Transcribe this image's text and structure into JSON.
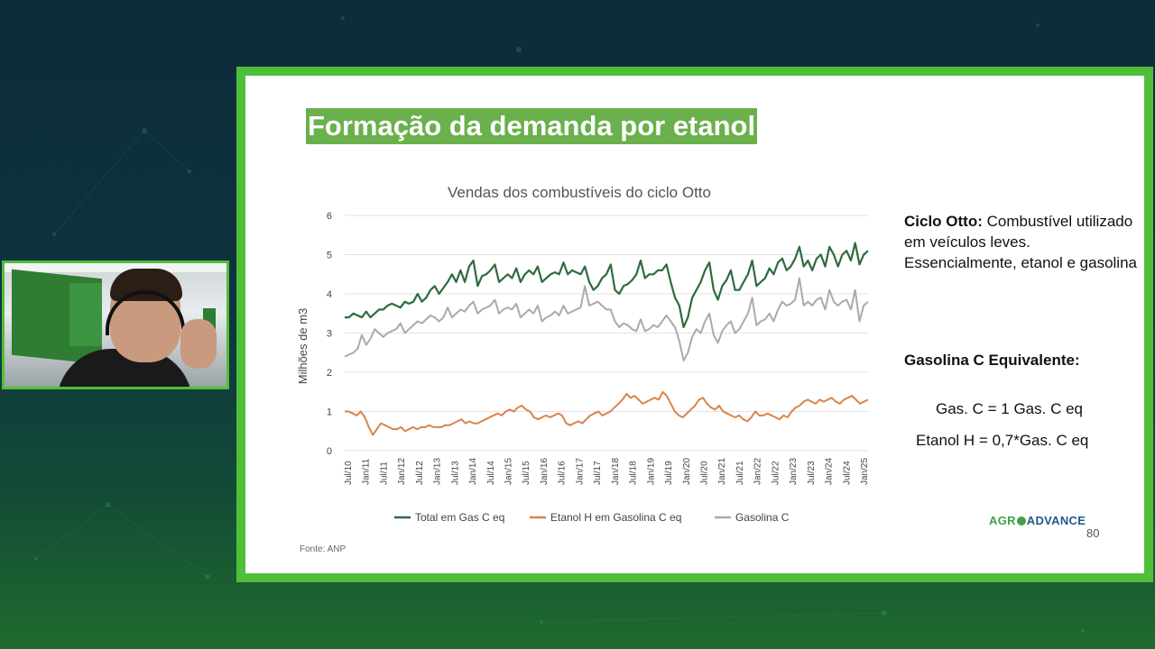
{
  "slide": {
    "title": "Formação da demanda por etanol",
    "source": "Fonte: ANP",
    "side_definition_bold": "Ciclo Otto:",
    "side_definition_text": " Combustível utilizado em veículos leves. Essencialmente, etanol e gasolina",
    "equivalent_title": "Gasolina C Equivalente:",
    "formula_1": "Gas. C = 1 Gas. C eq",
    "formula_2": "Etanol H = 0,7*Gas. C eq",
    "logo_agro": "AGR",
    "logo_advance": "ADVANCE",
    "page_number": "80"
  },
  "colors": {
    "frame": "#4fbf3a",
    "title_bg": "#6ab04c",
    "total": "#2e6b3f",
    "etanol": "#d9844a",
    "gasolina": "#aaaaaa"
  },
  "chart_data": {
    "type": "line",
    "title": "Vendas dos combustíveis do ciclo Otto",
    "ylabel": "Milhões de m3",
    "ylim": [
      0,
      6
    ],
    "yticks": [
      "0",
      "1",
      "2",
      "3",
      "4",
      "5",
      "6"
    ],
    "xticks": [
      "Jul/10",
      "Jan/11",
      "Jul/11",
      "Jan/12",
      "Jul/12",
      "Jan/13",
      "Jul/13",
      "Jan/14",
      "Jul/14",
      "Jan/15",
      "Jul/15",
      "Jan/16",
      "Jul/16",
      "Jan/17",
      "Jul/17",
      "Jan/18",
      "Jul/18",
      "Jan/19",
      "Jul/19",
      "Jan/20",
      "Jul/20",
      "Jan/21",
      "Jul/21",
      "Jan/22",
      "Jul/22",
      "Jan/23",
      "Jul/23",
      "Jan/24",
      "Jul/24",
      "Jan/25"
    ],
    "grid": true,
    "legend_position": "bottom",
    "series": [
      {
        "name": "Total em Gas C eq",
        "values": [
          3.4,
          3.4,
          3.5,
          3.45,
          3.4,
          3.55,
          3.4,
          3.5,
          3.6,
          3.6,
          3.7,
          3.75,
          3.7,
          3.65,
          3.8,
          3.75,
          3.8,
          4.0,
          3.8,
          3.9,
          4.1,
          4.2,
          4.0,
          4.15,
          4.3,
          4.5,
          4.3,
          4.6,
          4.3,
          4.7,
          4.85,
          4.2,
          4.45,
          4.5,
          4.6,
          4.75,
          4.3,
          4.4,
          4.5,
          4.4,
          4.65,
          4.3,
          4.5,
          4.6,
          4.5,
          4.7,
          4.3,
          4.4,
          4.5,
          4.55,
          4.5,
          4.8,
          4.5,
          4.6,
          4.55,
          4.5,
          4.7,
          4.3,
          4.1,
          4.2,
          4.4,
          4.5,
          4.75,
          4.1,
          4.0,
          4.2,
          4.25,
          4.35,
          4.5,
          4.85,
          4.4,
          4.5,
          4.5,
          4.6,
          4.6,
          4.75,
          4.3,
          3.9,
          3.7,
          3.15,
          3.4,
          3.9,
          4.1,
          4.3,
          4.6,
          4.8,
          4.1,
          3.85,
          4.2,
          4.35,
          4.6,
          4.1,
          4.1,
          4.3,
          4.5,
          4.85,
          4.2,
          4.3,
          4.4,
          4.65,
          4.5,
          4.8,
          4.9,
          4.6,
          4.7,
          4.9,
          5.2,
          4.7,
          4.85,
          4.6,
          4.9,
          5.0,
          4.7,
          5.2,
          5.0,
          4.7,
          5.0,
          5.1,
          4.85,
          5.3,
          4.75,
          5.0,
          5.1
        ]
      },
      {
        "name": "Etanol H em Gasolina C eq",
        "values": [
          1.0,
          1.0,
          0.95,
          0.9,
          1.0,
          0.85,
          0.6,
          0.4,
          0.55,
          0.7,
          0.65,
          0.6,
          0.55,
          0.55,
          0.6,
          0.5,
          0.55,
          0.6,
          0.55,
          0.6,
          0.6,
          0.65,
          0.6,
          0.6,
          0.6,
          0.65,
          0.65,
          0.7,
          0.75,
          0.8,
          0.7,
          0.75,
          0.7,
          0.7,
          0.75,
          0.8,
          0.85,
          0.9,
          0.95,
          0.9,
          1.0,
          1.05,
          1.0,
          1.1,
          1.15,
          1.05,
          1.0,
          0.85,
          0.8,
          0.85,
          0.9,
          0.85,
          0.9,
          0.95,
          0.9,
          0.7,
          0.65,
          0.7,
          0.75,
          0.7,
          0.8,
          0.9,
          0.95,
          1.0,
          0.9,
          0.95,
          1.0,
          1.1,
          1.2,
          1.3,
          1.45,
          1.35,
          1.4,
          1.3,
          1.2,
          1.25,
          1.3,
          1.35,
          1.3,
          1.5,
          1.4,
          1.2,
          1.0,
          0.9,
          0.85,
          0.95,
          1.05,
          1.15,
          1.3,
          1.35,
          1.2,
          1.1,
          1.05,
          1.15,
          1.0,
          0.95,
          0.9,
          0.85,
          0.9,
          0.8,
          0.75,
          0.85,
          1.0,
          0.9,
          0.9,
          0.95,
          0.9,
          0.85,
          0.8,
          0.9,
          0.85,
          1.0,
          1.1,
          1.15,
          1.25,
          1.3,
          1.25,
          1.2,
          1.3,
          1.25,
          1.3,
          1.35,
          1.25,
          1.2,
          1.3,
          1.35,
          1.4,
          1.3,
          1.2,
          1.25,
          1.3
        ]
      },
      {
        "name": "Gasolina C",
        "values": [
          2.4,
          2.45,
          2.5,
          2.6,
          2.95,
          2.7,
          2.85,
          3.1,
          3.0,
          2.9,
          3.0,
          3.05,
          3.1,
          3.25,
          3.0,
          3.1,
          3.2,
          3.3,
          3.25,
          3.35,
          3.45,
          3.4,
          3.3,
          3.4,
          3.65,
          3.4,
          3.5,
          3.6,
          3.55,
          3.7,
          3.8,
          3.5,
          3.6,
          3.65,
          3.7,
          3.85,
          3.5,
          3.6,
          3.65,
          3.6,
          3.75,
          3.4,
          3.5,
          3.6,
          3.5,
          3.7,
          3.3,
          3.4,
          3.45,
          3.55,
          3.45,
          3.7,
          3.5,
          3.55,
          3.6,
          3.65,
          4.2,
          3.7,
          3.75,
          3.8,
          3.7,
          3.6,
          3.6,
          3.3,
          3.15,
          3.25,
          3.2,
          3.1,
          3.05,
          3.35,
          3.05,
          3.1,
          3.2,
          3.15,
          3.3,
          3.45,
          3.3,
          3.15,
          2.8,
          2.3,
          2.5,
          2.9,
          3.1,
          3.0,
          3.3,
          3.5,
          2.95,
          2.75,
          3.05,
          3.2,
          3.3,
          3.0,
          3.1,
          3.3,
          3.5,
          3.9,
          3.2,
          3.3,
          3.35,
          3.5,
          3.3,
          3.6,
          3.8,
          3.7,
          3.75,
          3.85,
          4.4,
          3.7,
          3.8,
          3.7,
          3.85,
          3.9,
          3.6,
          4.1,
          3.8,
          3.7,
          3.8,
          3.85,
          3.6,
          4.1,
          3.3,
          3.7,
          3.8
        ]
      }
    ],
    "legend": [
      "Total em Gas C eq",
      "Etanol H em Gasolina C eq",
      "Gasolina C"
    ]
  },
  "webcam": {
    "label": "presenter-webcam"
  }
}
